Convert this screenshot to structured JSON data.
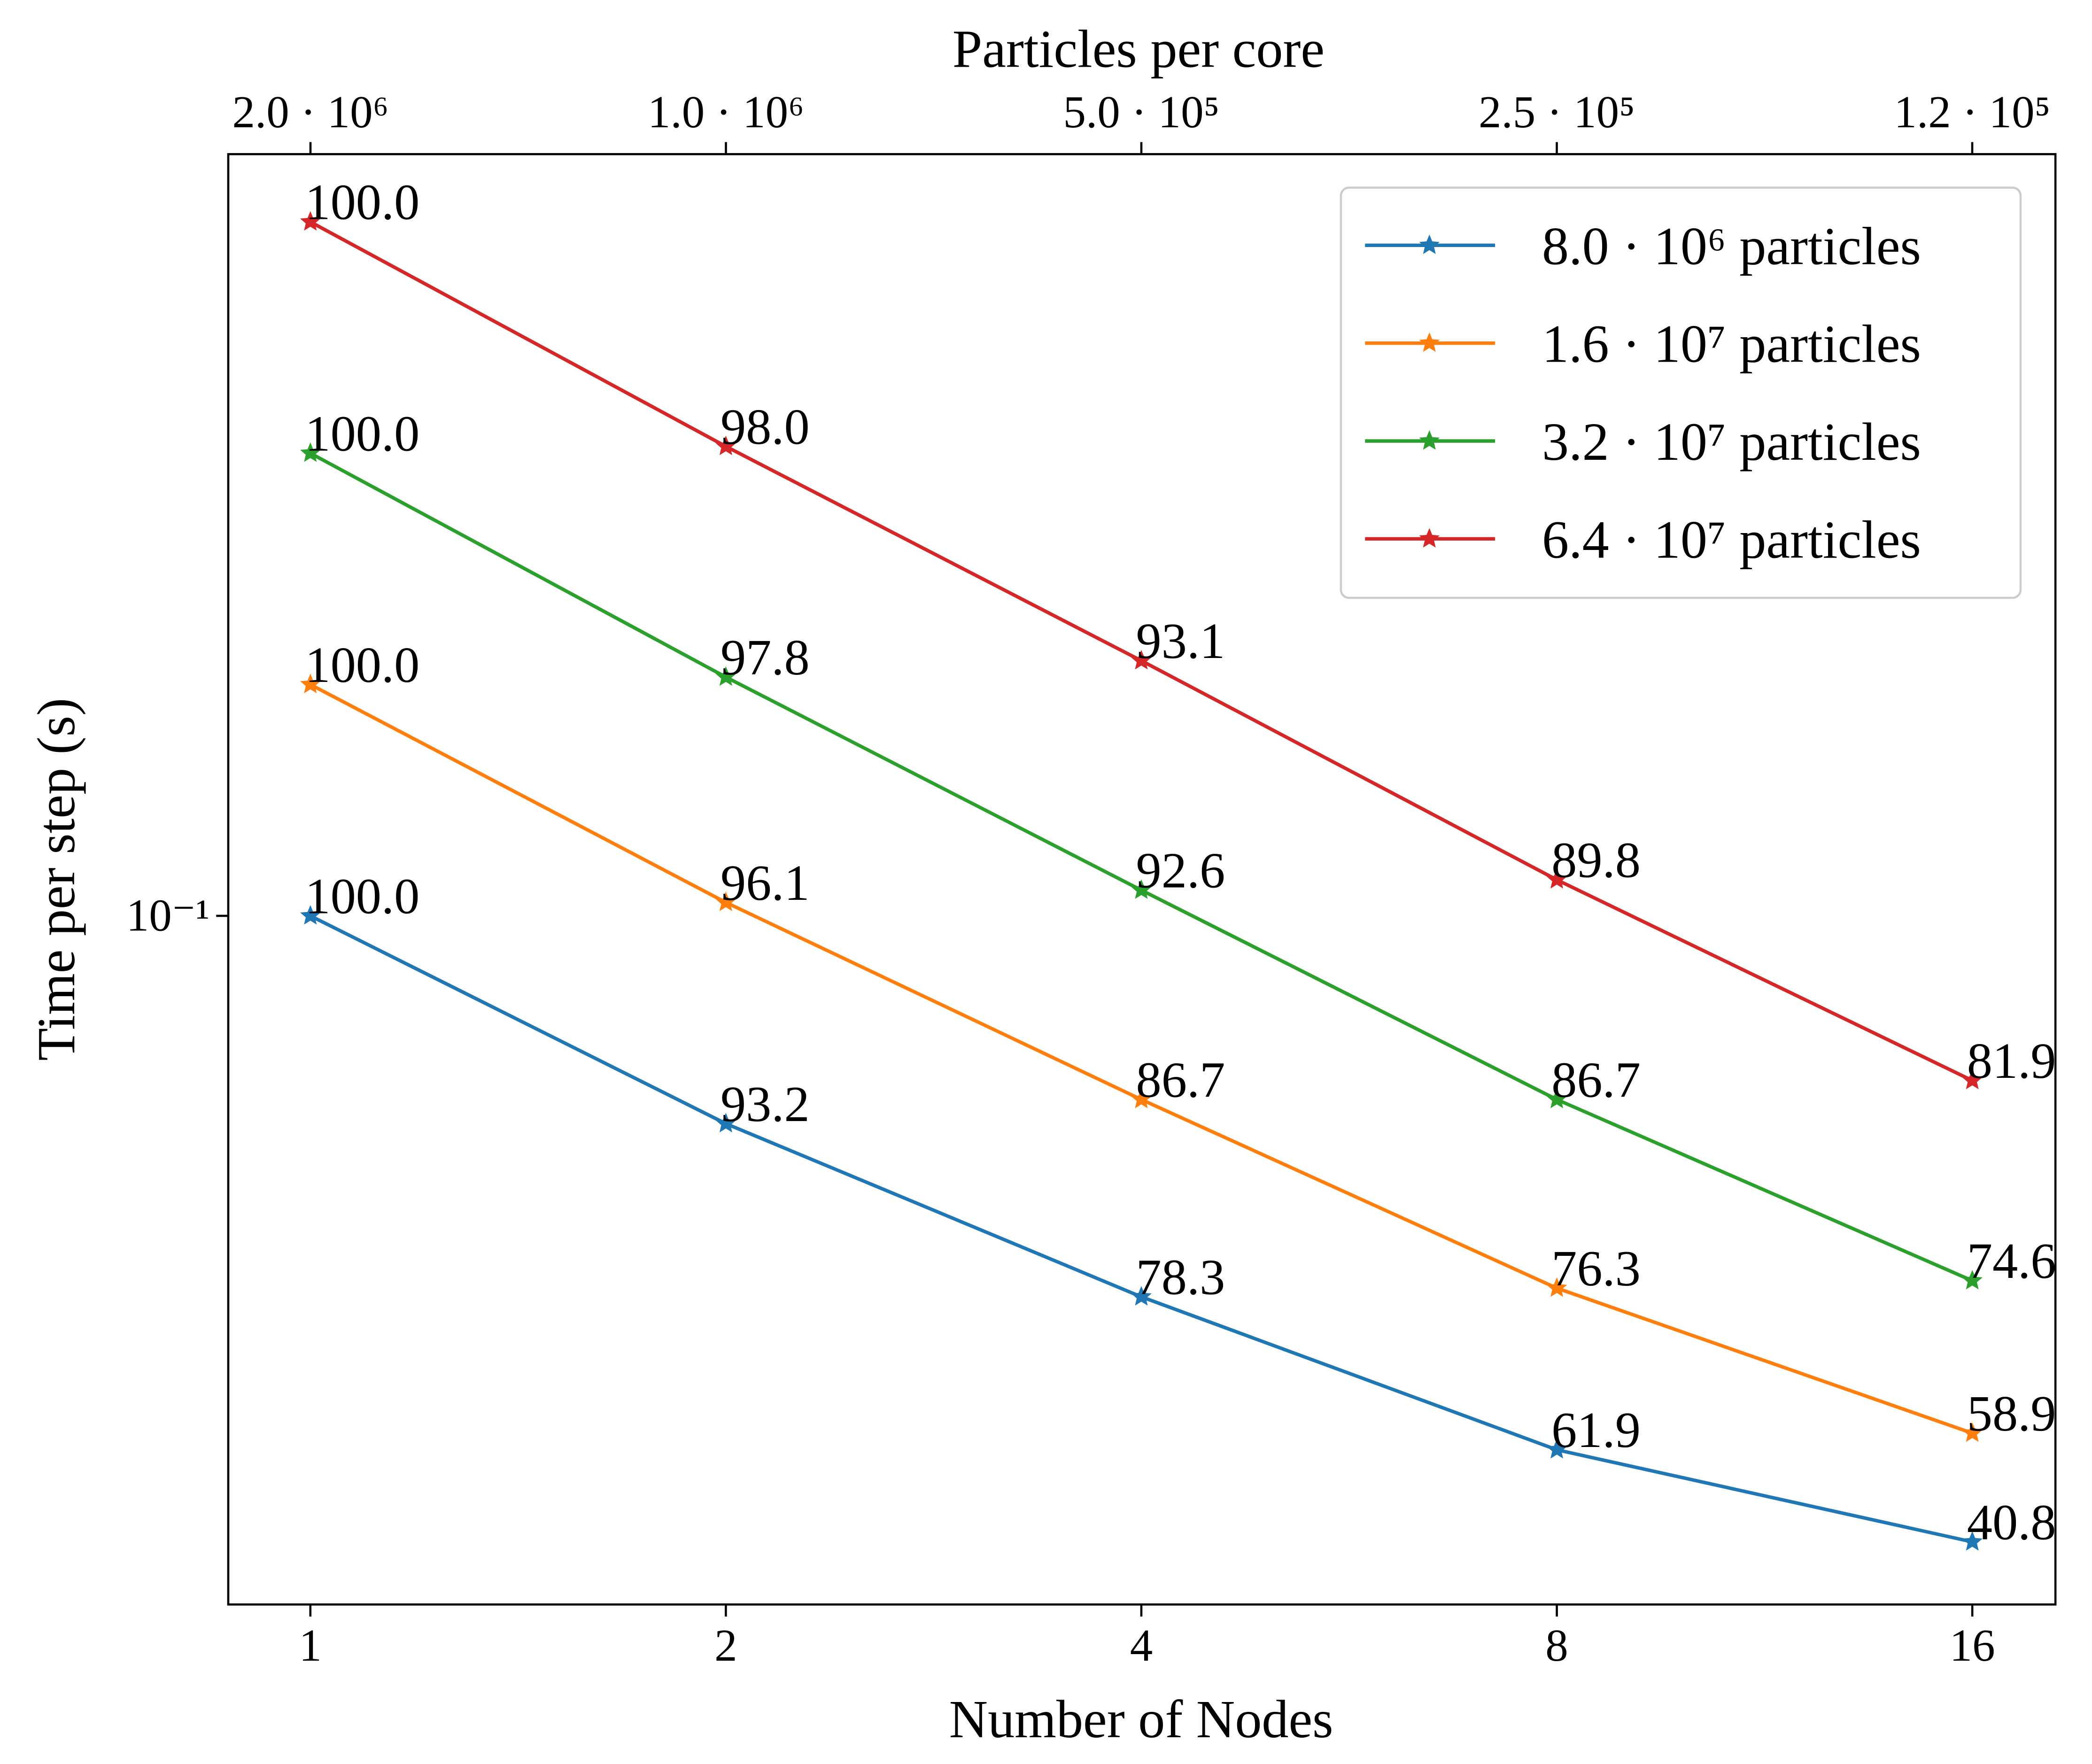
{
  "chart_data": {
    "type": "line",
    "xlabel": "Number of Nodes",
    "ylabel": "Time per step (s)",
    "x2label": "Particles per core",
    "x_scale": "log2",
    "y_scale": "log",
    "x": [
      1,
      2,
      4,
      8,
      16
    ],
    "xlim": [
      0.872,
      18.38
    ],
    "xticks": [
      1,
      2,
      4,
      8,
      16
    ],
    "ylim": [
      0.0127,
      0.98
    ],
    "yticks": [
      {
        "value": 0.1,
        "label": "10⁻¹"
      }
    ],
    "x2lim": [
      2294000,
      108800
    ],
    "x2ticks": [
      {
        "value": 2000000,
        "label": "2.0 · 10⁶"
      },
      {
        "value": 1000000,
        "label": "1.0 · 10⁶"
      },
      {
        "value": 500000,
        "label": "5.0 · 10⁵"
      },
      {
        "value": 250000,
        "label": "2.5 · 10⁵"
      },
      {
        "value": 125000,
        "label": "1.2 · 10⁵"
      }
    ],
    "legend": "upper right",
    "marker": "star",
    "series": [
      {
        "name": "8.0 · 10⁶ particles",
        "color": "#1f77b4",
        "values": [
          0.1,
          0.05365,
          0.03193,
          0.02019,
          0.01532
        ],
        "point_labels": [
          "100.0",
          "93.2",
          "78.3",
          "61.9",
          "40.8"
        ]
      },
      {
        "name": "1.6 · 10⁷ particles",
        "color": "#ff7f0e",
        "values": [
          0.2,
          0.1041,
          0.05767,
          0.03277,
          0.02122
        ],
        "point_labels": [
          "100.0",
          "96.1",
          "86.7",
          "76.3",
          "58.9"
        ]
      },
      {
        "name": "3.2 · 10⁷ particles",
        "color": "#2ca02c",
        "values": [
          0.4,
          0.2045,
          0.108,
          0.05767,
          0.03351
        ],
        "point_labels": [
          "100.0",
          "97.8",
          "92.6",
          "86.7",
          "74.6"
        ]
      },
      {
        "name": "6.4 · 10⁷ particles",
        "color": "#d62728",
        "values": [
          0.8,
          0.4082,
          0.2148,
          0.1114,
          0.06105
        ],
        "point_labels": [
          "100.0",
          "98.0",
          "93.1",
          "89.8",
          "81.9"
        ]
      }
    ]
  }
}
